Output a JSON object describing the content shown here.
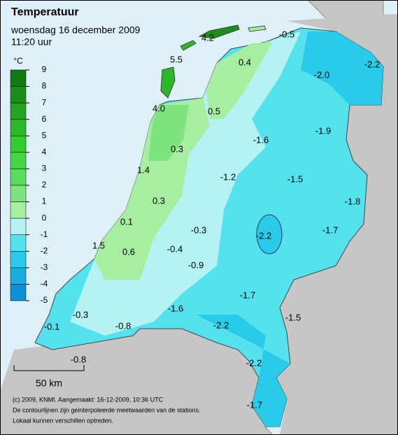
{
  "header": {
    "title": "Temperatuur",
    "date": "woensdag 16 december 2009",
    "time": "11:20 uur"
  },
  "legend": {
    "unit": "°C",
    "ticks": [
      9,
      8,
      7,
      6,
      5,
      4,
      3,
      2,
      1,
      0,
      -1,
      -2,
      -3,
      -4,
      -5
    ],
    "colors": [
      "#137a13",
      "#1a8f1a",
      "#22a322",
      "#2ab82a",
      "#33cc33",
      "#44d444",
      "#5cdc5c",
      "#7ee47e",
      "#a6eea0",
      "#b4f2f4",
      "#55e2ef",
      "#28cbe9",
      "#18aee2",
      "#0c90d8"
    ]
  },
  "stations": [
    "-0.5",
    "4.2",
    "5.5",
    "0.4",
    "-2.0",
    "-2.2",
    "4.0",
    "0.5",
    "-1.9",
    "-1.6",
    "0.3",
    "1.4",
    "-1.2",
    "-1.5",
    "-1.8",
    "0.3",
    "0.1",
    "-0.3",
    "-2.2",
    "-1.7",
    "1.5",
    "0.6",
    "-0.4",
    "-0.9",
    "-1.7",
    "-1.6",
    "-1.5",
    "-0.3",
    "-2.2",
    "-0.1",
    "-0.8",
    "-0.8",
    "-2.2",
    "-1.7"
  ],
  "scale": "50 km",
  "footer": [
    "(c) 2009, KNMI. Aangemaakt: 16-12-2009, 10:36 UTC",
    "De contourlijnen zijn geinterpoleerde meetwaarden van de stations.",
    "Lokaal kunnen verschillen optreden."
  ]
}
